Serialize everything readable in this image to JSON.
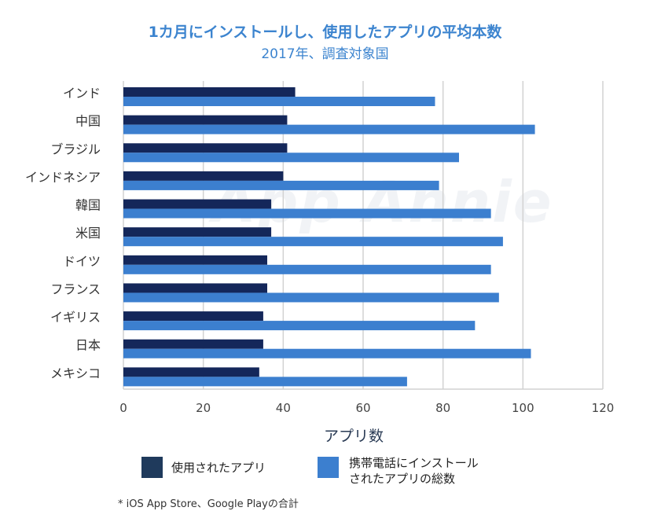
{
  "chart_data": {
    "type": "bar",
    "orientation": "horizontal",
    "title": "1カ月にインストールし、使用したアプリの平均本数",
    "subtitle": "2017年、調査対象国",
    "xlabel": "アプリ数",
    "xlim": [
      0,
      120
    ],
    "xticks": [
      0,
      20,
      40,
      60,
      80,
      100,
      120
    ],
    "grid": true,
    "categories": [
      "インド",
      "中国",
      "ブラジル",
      "インドネシア",
      "韓国",
      "米国",
      "ドイツ",
      "フランス",
      "イギリス",
      "日本",
      "メキシコ"
    ],
    "series": [
      {
        "name": "使用されたアプリ",
        "color": "#14275a",
        "values": [
          43,
          41,
          41,
          40,
          37,
          37,
          36,
          36,
          35,
          35,
          34
        ]
      },
      {
        "name": "携帯電話にインストールされたアプリの総数",
        "color": "#3c7fcf",
        "values": [
          78,
          103,
          84,
          79,
          92,
          95,
          92,
          94,
          88,
          102,
          71
        ]
      }
    ],
    "legend": {
      "position": "bottom",
      "items": [
        {
          "label": "使用されたアプリ",
          "color": "#1f3a5c"
        },
        {
          "label_line1": "携帯電話にインストール",
          "label_line2": "されたアプリの総数",
          "color": "#3c7fcf"
        }
      ]
    },
    "footnote": "* iOS App Store、Google Playの合計",
    "watermark": "App Annie"
  }
}
